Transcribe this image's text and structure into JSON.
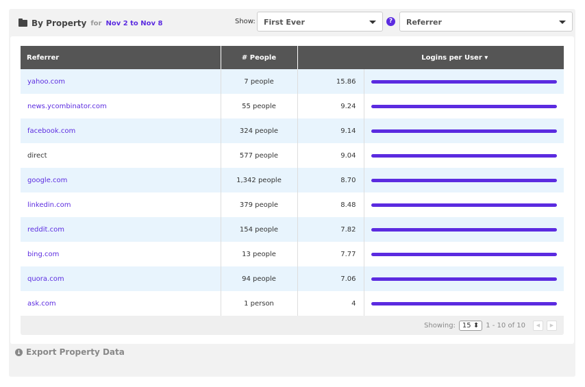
{
  "header": {
    "title": "By Property",
    "for": "for",
    "range": "Nov 2 to Nov 8",
    "show_label": "Show:",
    "show_value": "First Ever",
    "property_value": "Referrer",
    "help": "?"
  },
  "table": {
    "columns": [
      "Referrer",
      "# People",
      "Logins per User ▾"
    ],
    "rows": [
      {
        "referrer": "yahoo.com",
        "people": "7 people",
        "value": "15.86",
        "link": true,
        "fill": 1
      },
      {
        "referrer": "news.ycombinator.com",
        "people": "55 people",
        "value": "9.24",
        "link": true,
        "fill": 1
      },
      {
        "referrer": "facebook.com",
        "people": "324 people",
        "value": "9.14",
        "link": true,
        "fill": 1
      },
      {
        "referrer": "direct",
        "people": "577 people",
        "value": "9.04",
        "link": false,
        "fill": 1
      },
      {
        "referrer": "google.com",
        "people": "1,342 people",
        "value": "8.70",
        "link": true,
        "fill": 1
      },
      {
        "referrer": "linkedin.com",
        "people": "379 people",
        "value": "8.48",
        "link": true,
        "fill": 1
      },
      {
        "referrer": "reddit.com",
        "people": "154 people",
        "value": "7.82",
        "link": true,
        "fill": 1
      },
      {
        "referrer": "bing.com",
        "people": "13 people",
        "value": "7.77",
        "link": true,
        "fill": 1
      },
      {
        "referrer": "quora.com",
        "people": "94 people",
        "value": "7.06",
        "link": true,
        "fill": 1
      },
      {
        "referrer": "ask.com",
        "people": "1 person",
        "value": "4",
        "link": true,
        "fill": 1
      }
    ]
  },
  "footer": {
    "showing_label": "Showing:",
    "per_page": "15 ⬍",
    "range": "1 - 10 of 10",
    "prev": "◀",
    "next": "▶"
  },
  "export": {
    "label": "Export Property Data",
    "icon": "↓"
  }
}
